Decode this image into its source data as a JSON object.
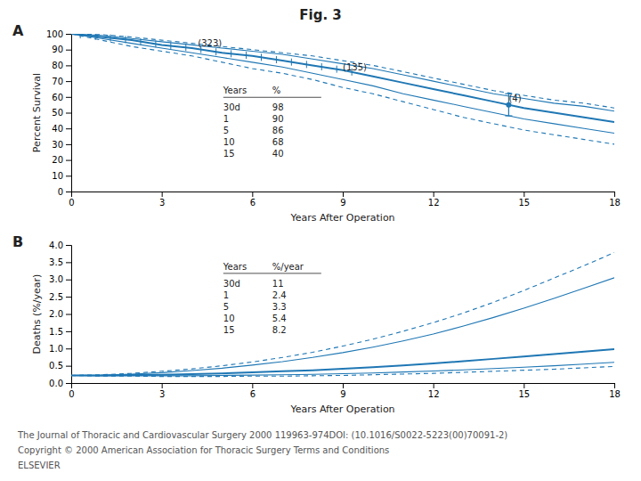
{
  "chart_data": [
    {
      "type": "line",
      "title": "Fig. 3",
      "xlabel": "Years After Operation",
      "ylabel": "Percent Survival",
      "xlim": [
        0,
        18
      ],
      "ylim": [
        0,
        100
      ],
      "xticks": [
        0,
        3,
        6,
        9,
        12,
        15,
        18
      ],
      "yticks": [
        0,
        10,
        20,
        30,
        40,
        50,
        60,
        70,
        80,
        90,
        100
      ],
      "x": [
        0,
        1,
        2,
        3,
        4,
        5,
        6,
        7,
        8,
        9,
        10,
        11,
        12,
        13,
        14,
        15,
        16,
        17,
        18
      ],
      "series": [
        {
          "values": [
            100,
            98,
            96,
            93,
            91,
            88,
            86,
            83,
            80,
            77,
            73,
            69,
            65,
            61,
            57,
            53,
            50,
            47,
            44
          ],
          "line_style": "solid"
        },
        {
          "values": [
            100,
            99,
            97,
            95,
            93,
            91,
            89,
            87,
            84,
            81,
            78,
            74,
            70,
            66,
            62,
            59,
            56,
            54,
            51
          ],
          "line_style": "solid"
        },
        {
          "values": [
            100,
            97,
            94,
            91,
            88,
            85,
            82,
            79,
            75,
            71,
            67,
            62,
            58,
            54,
            50,
            46,
            43,
            40,
            37
          ],
          "line_style": "solid"
        },
        {
          "values": [
            100,
            99.5,
            98,
            96,
            94,
            92,
            90,
            88,
            86,
            83,
            80,
            76,
            72,
            68,
            64,
            61,
            58,
            56,
            53
          ],
          "line_style": "dashed"
        },
        {
          "values": [
            100,
            96,
            92,
            89,
            86,
            82,
            78,
            75,
            71,
            66,
            62,
            57,
            52,
            47,
            43,
            39,
            36,
            33,
            30
          ],
          "line_style": "dashed"
        },
        {
          "type": "scatter",
          "marker": "tick",
          "x": [
            0.3,
            0.8,
            1.3,
            1.8,
            2.3,
            2.8,
            3.3,
            3.8,
            4.3,
            4.8,
            5.3,
            5.8,
            6.3,
            6.8,
            7.3,
            7.8,
            8.3,
            8.8,
            9.3
          ],
          "values": [
            99.4,
            98.4,
            97.4,
            96.4,
            95.1,
            93.6,
            92.4,
            91.4,
            90.1,
            88.6,
            87.4,
            86.4,
            85.1,
            83.6,
            82.1,
            80.6,
            79.1,
            77.6,
            75.8
          ]
        },
        {
          "type": "scatter",
          "marker": "circle",
          "x": [
            14.5
          ],
          "values": [
            55
          ],
          "errors": [
            7
          ]
        }
      ],
      "annotations": [
        {
          "text": "A"
        },
        {
          "text": "(323)",
          "x": 4.2,
          "y": 92
        },
        {
          "text": "(135)",
          "x": 9.0,
          "y": 77
        },
        {
          "text": "(4)",
          "x": 14.5,
          "y": 57
        }
      ],
      "table": [
        [
          "Years",
          "%"
        ],
        [
          "30d",
          "98"
        ],
        [
          "1",
          "90"
        ],
        [
          "5",
          "86"
        ],
        [
          "10",
          "68"
        ],
        [
          "15",
          "40"
        ]
      ]
    },
    {
      "type": "line",
      "xlabel": "Years After Operation",
      "ylabel": "Deaths (%/year)",
      "xlim": [
        0,
        18
      ],
      "ylim": [
        0,
        4
      ],
      "xticks": [
        0,
        3,
        6,
        9,
        12,
        15,
        18
      ],
      "yticks": [
        {
          "value": 0,
          "label": "0.0"
        },
        0.5,
        {
          "value": 1,
          "label": "1.0"
        },
        1.5,
        {
          "value": 2,
          "label": "2.0"
        },
        2.5,
        {
          "value": 3,
          "label": "3.0"
        },
        3.5,
        {
          "value": 4,
          "label": "4.0"
        }
      ],
      "x": [
        0,
        1,
        2,
        3,
        4,
        5,
        6,
        7,
        8,
        9,
        10,
        11,
        12,
        13,
        14,
        15,
        16,
        17,
        18
      ],
      "series": [
        {
          "values": [
            0.22,
            0.22,
            0.23,
            0.24,
            0.26,
            0.28,
            0.31,
            0.34,
            0.37,
            0.41,
            0.46,
            0.51,
            0.57,
            0.63,
            0.7,
            0.77,
            0.84,
            0.91,
            0.98
          ],
          "line_style": "solid"
        },
        {
          "values": [
            0.22,
            0.23,
            0.26,
            0.3,
            0.36,
            0.43,
            0.52,
            0.62,
            0.74,
            0.88,
            1.04,
            1.22,
            1.42,
            1.65,
            1.9,
            2.17,
            2.45,
            2.75,
            3.05
          ],
          "line_style": "solid"
        },
        {
          "values": [
            0.22,
            0.21,
            0.21,
            0.21,
            0.21,
            0.22,
            0.23,
            0.24,
            0.25,
            0.27,
            0.29,
            0.32,
            0.35,
            0.38,
            0.42,
            0.46,
            0.5,
            0.55,
            0.6
          ],
          "line_style": "solid"
        },
        {
          "values": [
            0.22,
            0.24,
            0.28,
            0.34,
            0.41,
            0.5,
            0.61,
            0.74,
            0.89,
            1.07,
            1.27,
            1.5,
            1.75,
            2.03,
            2.34,
            2.68,
            3.04,
            3.4,
            3.78
          ],
          "line_style": "dashed"
        },
        {
          "values": [
            0.22,
            0.2,
            0.2,
            0.19,
            0.19,
            0.19,
            0.2,
            0.2,
            0.21,
            0.22,
            0.24,
            0.26,
            0.28,
            0.31,
            0.34,
            0.37,
            0.4,
            0.44,
            0.48
          ],
          "line_style": "dashed"
        }
      ],
      "annotations": [
        {
          "text": "B"
        },
        {
          "text": "The Journal of Thoracic and Cardiovascular Surgery 2000 119963-974DOI: (10.1016/S0022-5223(00)70091-2)"
        },
        {
          "text": "Copyright © 2000 American Association for Thoracic Surgery Terms and Conditions"
        },
        {
          "text": "ELSEVIER"
        }
      ],
      "table": [
        [
          "Years",
          "%/year"
        ],
        [
          "30d",
          "11"
        ],
        [
          "1",
          "2.4"
        ],
        [
          "5",
          "3.3"
        ],
        [
          "10",
          "5.4"
        ],
        [
          "15",
          "8.2"
        ]
      ]
    }
  ]
}
